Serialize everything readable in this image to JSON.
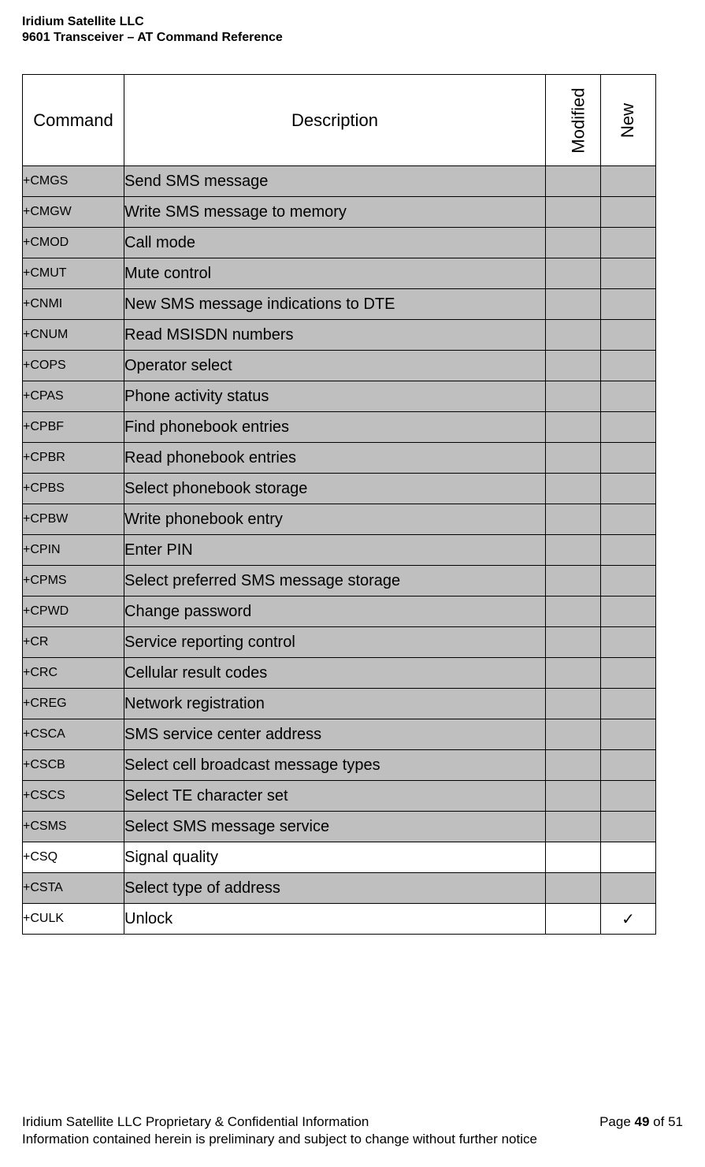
{
  "header": {
    "line1": "Iridium Satellite LLC",
    "line2": "9601 Transceiver – AT Command Reference"
  },
  "table": {
    "headers": {
      "command": "Command",
      "description": "Description",
      "modified": "Modified",
      "new": "New"
    },
    "rows": [
      {
        "cmd": "+CMGS",
        "desc": "Send SMS message",
        "modified": "",
        "new": "",
        "shaded": true
      },
      {
        "cmd": "+CMGW",
        "desc": "Write SMS message to memory",
        "modified": "",
        "new": "",
        "shaded": true
      },
      {
        "cmd": "+CMOD",
        "desc": "Call mode",
        "modified": "",
        "new": "",
        "shaded": true
      },
      {
        "cmd": "+CMUT",
        "desc": "Mute control",
        "modified": "",
        "new": "",
        "shaded": true
      },
      {
        "cmd": "+CNMI",
        "desc": "New SMS message indications to DTE",
        "modified": "",
        "new": "",
        "shaded": true
      },
      {
        "cmd": "+CNUM",
        "desc": "Read MSISDN numbers",
        "modified": "",
        "new": "",
        "shaded": true
      },
      {
        "cmd": "+COPS",
        "desc": "Operator select",
        "modified": "",
        "new": "",
        "shaded": true
      },
      {
        "cmd": "+CPAS",
        "desc": "Phone activity status",
        "modified": "",
        "new": "",
        "shaded": true
      },
      {
        "cmd": "+CPBF",
        "desc": "Find phonebook entries",
        "modified": "",
        "new": "",
        "shaded": true
      },
      {
        "cmd": "+CPBR",
        "desc": "Read phonebook entries",
        "modified": "",
        "new": "",
        "shaded": true
      },
      {
        "cmd": "+CPBS",
        "desc": "Select phonebook storage",
        "modified": "",
        "new": "",
        "shaded": true
      },
      {
        "cmd": "+CPBW",
        "desc": "Write phonebook entry",
        "modified": "",
        "new": "",
        "shaded": true
      },
      {
        "cmd": "+CPIN",
        "desc": "Enter PIN",
        "modified": "",
        "new": "",
        "shaded": true
      },
      {
        "cmd": "+CPMS",
        "desc": "Select preferred SMS message storage",
        "modified": "",
        "new": "",
        "shaded": true
      },
      {
        "cmd": "+CPWD",
        "desc": "Change password",
        "modified": "",
        "new": "",
        "shaded": true
      },
      {
        "cmd": "+CR",
        "desc": "Service reporting control",
        "modified": "",
        "new": "",
        "shaded": true
      },
      {
        "cmd": "+CRC",
        "desc": "Cellular result codes",
        "modified": "",
        "new": "",
        "shaded": true
      },
      {
        "cmd": "+CREG",
        "desc": "Network registration",
        "modified": "",
        "new": "",
        "shaded": true
      },
      {
        "cmd": "+CSCA",
        "desc": "SMS service center address",
        "modified": "",
        "new": "",
        "shaded": true
      },
      {
        "cmd": "+CSCB",
        "desc": "Select cell broadcast message types",
        "modified": "",
        "new": "",
        "shaded": true
      },
      {
        "cmd": "+CSCS",
        "desc": "Select TE character set",
        "modified": "",
        "new": "",
        "shaded": true
      },
      {
        "cmd": "+CSMS",
        "desc": "Select SMS message service",
        "modified": "",
        "new": "",
        "shaded": true
      },
      {
        "cmd": "+CSQ",
        "desc": "Signal quality",
        "modified": "",
        "new": "",
        "shaded": false
      },
      {
        "cmd": "+CSTA",
        "desc": "Select type of address",
        "modified": "",
        "new": "",
        "shaded": true
      },
      {
        "cmd": "+CULK",
        "desc": "Unlock",
        "modified": "",
        "new": "✓",
        "shaded": false
      }
    ]
  },
  "footer": {
    "left1": "Iridium Satellite LLC Proprietary & Confidential Information",
    "right1_prefix": "Page ",
    "right1_bold": "49",
    "right1_suffix": " of 51",
    "line2": "Information contained herein is preliminary and subject to change without further notice"
  }
}
